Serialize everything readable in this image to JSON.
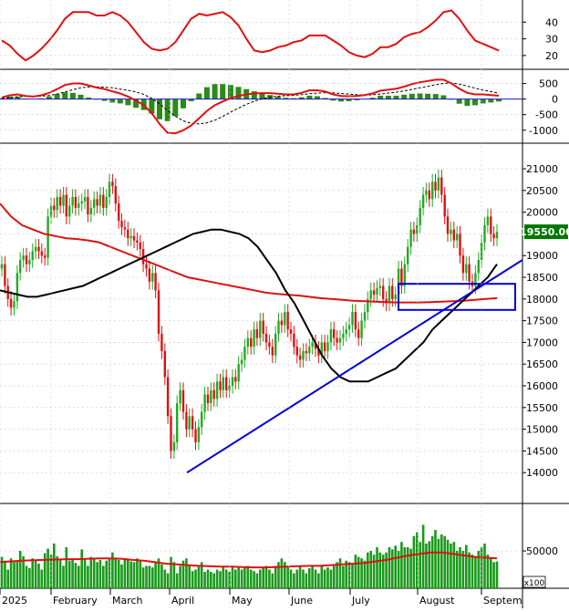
{
  "chart_data": [
    {
      "type": "line",
      "panel": "rsi",
      "y_ticks": [
        20,
        30,
        40
      ],
      "ylim": [
        15,
        50
      ],
      "grid": true,
      "colors": {
        "line": "#e01010"
      },
      "series": [
        {
          "values": [
            29,
            26,
            21,
            17,
            20,
            24,
            29,
            35,
            42,
            46,
            46,
            46,
            44,
            44,
            46,
            44,
            40,
            34,
            28,
            24,
            23,
            24,
            28,
            35,
            42,
            45,
            44,
            45,
            46,
            43,
            38,
            30,
            23,
            22,
            23,
            25,
            26,
            28,
            29,
            32,
            32,
            32,
            29,
            26,
            22,
            20,
            19,
            21,
            25,
            25,
            27,
            31,
            33,
            34,
            37,
            41,
            46,
            47,
            42,
            35,
            29,
            27,
            25,
            23
          ]
        }
      ]
    },
    {
      "type": "line",
      "panel": "macd",
      "y_ticks": [
        500,
        0,
        -500,
        -1000
      ],
      "ylim": [
        -1300,
        750
      ],
      "grid": true,
      "colors": {
        "macd": "#e01010",
        "signal": "#000000",
        "histogram": "#2a8a1a",
        "zero": "#1818c0"
      },
      "series": [
        {
          "values": [
            50,
            120,
            150,
            100,
            80,
            120,
            200,
            320,
            450,
            500,
            500,
            440,
            370,
            320,
            250,
            180,
            80,
            -50,
            -200,
            -450,
            -800,
            -1080,
            -1100,
            -1000,
            -850,
            -620,
            -380,
            -200,
            -80,
            30,
            100,
            150,
            180,
            190,
            190,
            170,
            150,
            150,
            200,
            280,
            280,
            240,
            150,
            100,
            90,
            100,
            130,
            180,
            270,
            300,
            330,
            400,
            480,
            540,
            580,
            620,
            620,
            500,
            330,
            200,
            150,
            150,
            130,
            110
          ]
        },
        {
          "values": [
            20,
            40,
            70,
            85,
            90,
            95,
            115,
            160,
            230,
            300,
            360,
            390,
            390,
            380,
            360,
            320,
            280,
            230,
            150,
            20,
            -150,
            -370,
            -550,
            -700,
            -780,
            -800,
            -760,
            -680,
            -560,
            -420,
            -290,
            -170,
            -70,
            10,
            60,
            90,
            110,
            120,
            140,
            170,
            190,
            205,
            200,
            180,
            160,
            140,
            130,
            135,
            160,
            190,
            220,
            260,
            310,
            360,
            410,
            460,
            500,
            520,
            480,
            420,
            350,
            290,
            240,
            190
          ]
        }
      ]
    },
    {
      "type": "candlestick",
      "panel": "price",
      "last_price": "19550.00",
      "y_ticks": [
        14000,
        14500,
        15000,
        15500,
        16000,
        16500,
        17000,
        17500,
        18000,
        18500,
        19000,
        19500,
        20000,
        20500,
        21000
      ],
      "ylim": [
        13500,
        21400
      ],
      "grid": true,
      "colors": {
        "up": "#22aa22",
        "down": "#dd1111",
        "ma_long": "#dd1111",
        "ma_mid": "#000000",
        "trend": "#0000dd",
        "highlight_box": "#0000dd",
        "price_label_bg": "#007700",
        "price_label_text": "#ffffff"
      },
      "close": [
        18800,
        18300,
        18000,
        17800,
        17950,
        18600,
        18900,
        19000,
        18800,
        18900,
        19100,
        19200,
        19100,
        19000,
        18950,
        19900,
        20150,
        20050,
        20350,
        20150,
        20400,
        19900,
        20150,
        20350,
        20100,
        20200,
        20250,
        20350,
        19950,
        20100,
        20300,
        20150,
        20400,
        20100,
        20350,
        20700,
        20600,
        20200,
        19800,
        19650,
        19600,
        19400,
        19450,
        19350,
        19300,
        19150,
        18800,
        18700,
        18400,
        18600,
        18200,
        17200,
        16800,
        16200,
        15300,
        14500,
        14700,
        15600,
        15900,
        15400,
        15000,
        15300,
        15000,
        14700,
        15050,
        15400,
        15800,
        15600,
        15900,
        15700,
        16100,
        15900,
        16200,
        15900,
        16000,
        16200,
        16100,
        16500,
        16600,
        16900,
        17100,
        16900,
        17300,
        17100,
        17500,
        17200,
        17000,
        16900,
        16700,
        17200,
        17500,
        17400,
        17700,
        17300,
        17200,
        16900,
        16700,
        16600,
        16800,
        16750,
        16900,
        17000,
        16850,
        16700,
        17000,
        16800,
        17000,
        17300,
        17100,
        17000,
        17100,
        17200,
        17300,
        17400,
        17700,
        17300,
        17100,
        17500,
        17700,
        18000,
        18200,
        18100,
        18250,
        18300,
        18000,
        17900,
        18300,
        18000,
        18100,
        18700,
        18300,
        18800,
        19200,
        19600,
        19500,
        19700,
        20100,
        20400,
        20500,
        20300,
        20700,
        20500,
        20800,
        20400,
        19900,
        19500,
        19600,
        19350,
        19500,
        19000,
        18600,
        18800,
        18400,
        18300,
        18600,
        18900,
        19300,
        19700,
        19900,
        19500,
        19400,
        19550
      ],
      "series": [
        {
          "values": [
            18200,
            18150,
            18100,
            18050,
            18050,
            18100,
            18150,
            18200,
            18250,
            18300,
            18400,
            18500,
            18600,
            18700,
            18800,
            18900,
            19000,
            19100,
            19200,
            19300,
            19400,
            19500,
            19550,
            19600,
            19600,
            19550,
            19500,
            19400,
            19200,
            18900,
            18600,
            18200,
            17900,
            17500,
            17100,
            16700,
            16400,
            16200,
            16100,
            16100,
            16100,
            16200,
            16300,
            16400,
            16600,
            16800,
            17000,
            17300,
            17500,
            17700,
            17900,
            18100,
            18300,
            18500,
            18800
          ]
        },
        {
          "values": [
            20200,
            19900,
            19700,
            19600,
            19500,
            19450,
            19400,
            19380,
            19350,
            19300,
            19200,
            19100,
            19000,
            18900,
            18800,
            18700,
            18600,
            18500,
            18450,
            18400,
            18350,
            18300,
            18250,
            18200,
            18150,
            18120,
            18100,
            18080,
            18050,
            18020,
            18000,
            17980,
            17960,
            17950,
            17940,
            17930,
            17920,
            17920,
            17920,
            17930,
            17940,
            17950,
            17960,
            17980,
            18000,
            18020
          ]
        }
      ],
      "trendline": [
        [
          14000,
          18900
        ]
      ],
      "highlight_range": [
        17750,
        18350
      ]
    },
    {
      "type": "bar",
      "panel": "volume",
      "y_ticks": [
        50000
      ],
      "ylim": [
        0,
        105000
      ],
      "multiplier": "x100",
      "grid": true,
      "colors": {
        "bars": "#1a9a1a",
        "ma": "#dd1111"
      },
      "values": [
        42000,
        37000,
        25000,
        40000,
        35000,
        37000,
        50000,
        43000,
        30000,
        27000,
        40000,
        37000,
        33000,
        25000,
        47000,
        53000,
        45000,
        60000,
        43000,
        38000,
        30000,
        55000,
        37000,
        40000,
        34000,
        30000,
        52000,
        40000,
        30000,
        42000,
        40000,
        35000,
        38000,
        30000,
        37000,
        40000,
        48000,
        40000,
        38000,
        32000,
        40000,
        38000,
        36000,
        35000,
        40000,
        38000,
        28000,
        30000,
        30000,
        28000,
        35000,
        40000,
        32000,
        25000,
        20000,
        42000,
        35000,
        20000,
        30000,
        37000,
        40000,
        30000,
        23000,
        25000,
        30000,
        35000,
        22000,
        25000,
        22000,
        20000,
        25000,
        23000,
        30000,
        25000,
        22000,
        28000,
        25000,
        28000,
        25000,
        28000,
        30000,
        25000,
        23000,
        20000,
        25000,
        28000,
        30000,
        25000,
        20000,
        30000,
        35000,
        40000,
        35000,
        30000,
        25000,
        20000,
        25000,
        30000,
        25000,
        20000,
        27000,
        30000,
        25000,
        20000,
        30000,
        25000,
        28000,
        25000,
        30000,
        35000,
        40000,
        30000,
        37000,
        35000,
        32000,
        45000,
        42000,
        40000,
        37000,
        48000,
        50000,
        45000,
        55000,
        48000,
        45000,
        48000,
        55000,
        52000,
        57000,
        50000,
        62000,
        55000,
        55000,
        53000,
        70000,
        75000,
        62000,
        85000,
        60000,
        63000,
        70000,
        78000,
        66000,
        72000,
        70000,
        65000,
        60000,
        62000,
        50000,
        55000,
        50000,
        58000,
        48000,
        45000,
        42000,
        50000,
        55000,
        60000,
        45000,
        40000,
        35000,
        36000
      ],
      "series": [
        {
          "values": [
            35000,
            36000,
            37000,
            37500,
            38000,
            38500,
            39000,
            39000,
            39500,
            40000,
            40000,
            39500,
            38000,
            37000,
            35000,
            33000,
            32000,
            31000,
            30000,
            29500,
            29000,
            29000,
            28500,
            28000,
            28000,
            28500,
            29000,
            29500,
            30000,
            30000,
            31000,
            32000,
            33000,
            34000,
            36000,
            38000,
            41000,
            44000,
            46000,
            48000,
            48000,
            46000,
            44000,
            42000,
            41000,
            40000
          ]
        }
      ]
    }
  ],
  "x_axis": {
    "labels": [
      "2025",
      "February",
      "March",
      "April",
      "May",
      "June",
      "July",
      "August",
      "Septem"
    ]
  }
}
